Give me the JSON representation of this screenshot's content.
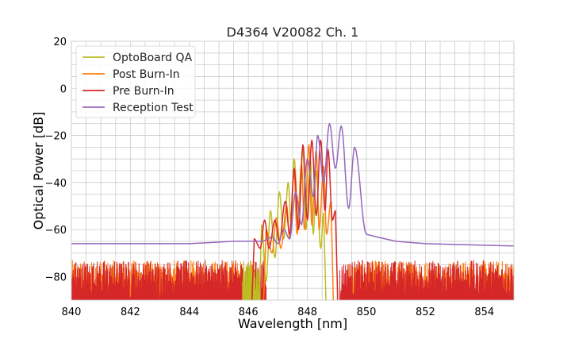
{
  "chart_data": {
    "type": "line",
    "title": "D4364 V20082 Ch. 1",
    "xlabel": "Wavelength [nm]",
    "ylabel": "Optical Power [dB]",
    "xlim": [
      840,
      855
    ],
    "ylim": [
      -90,
      20
    ],
    "xticks": [
      840,
      842,
      844,
      846,
      848,
      850,
      852,
      854
    ],
    "yticks": [
      20,
      0,
      -20,
      -40,
      -60,
      -80
    ],
    "xtick_labels": [
      "840",
      "842",
      "844",
      "846",
      "848",
      "850",
      "852",
      "854"
    ],
    "ytick_labels": [
      "20",
      "0",
      "−20",
      "−40",
      "−60",
      "−80"
    ],
    "grid": true,
    "legend_position": "top-left",
    "noise_floor": {
      "min": -90,
      "max": -73
    },
    "series": [
      {
        "name": "OptoBoard QA",
        "color": "#bcbd22",
        "noise_ranges": [
          [
            845.8,
            846.4
          ]
        ],
        "peaks": [
          {
            "x": 846.45,
            "y": -58
          },
          {
            "x": 846.75,
            "y": -52
          },
          {
            "x": 847.05,
            "y": -44
          },
          {
            "x": 847.35,
            "y": -40
          },
          {
            "x": 847.55,
            "y": -30
          },
          {
            "x": 847.85,
            "y": -26
          },
          {
            "x": 848.1,
            "y": -30
          },
          {
            "x": 848.3,
            "y": -35
          },
          {
            "x": 848.55,
            "y": -53
          }
        ],
        "valleys": [
          {
            "x": 846.6,
            "y": -82
          },
          {
            "x": 846.9,
            "y": -72
          },
          {
            "x": 847.2,
            "y": -64
          },
          {
            "x": 847.45,
            "y": -58
          },
          {
            "x": 847.7,
            "y": -58
          },
          {
            "x": 847.95,
            "y": -60
          },
          {
            "x": 848.2,
            "y": -62
          },
          {
            "x": 848.45,
            "y": -68
          }
        ]
      },
      {
        "name": "Post Burn-In",
        "color": "#ff7f0e",
        "noise_ranges": [
          [
            840,
            846.2
          ],
          [
            849.4,
            855
          ]
        ],
        "peaks": [
          {
            "x": 846.6,
            "y": -60
          },
          {
            "x": 846.95,
            "y": -55
          },
          {
            "x": 847.3,
            "y": -50
          },
          {
            "x": 847.55,
            "y": -36
          },
          {
            "x": 847.8,
            "y": -32
          },
          {
            "x": 848.05,
            "y": -24
          },
          {
            "x": 848.3,
            "y": -26
          },
          {
            "x": 848.55,
            "y": -33
          },
          {
            "x": 848.8,
            "y": -48
          }
        ],
        "valleys": [
          {
            "x": 846.8,
            "y": -70
          },
          {
            "x": 847.1,
            "y": -68
          },
          {
            "x": 847.4,
            "y": -64
          },
          {
            "x": 847.65,
            "y": -62
          },
          {
            "x": 847.9,
            "y": -60
          },
          {
            "x": 848.15,
            "y": -58
          },
          {
            "x": 848.4,
            "y": -60
          },
          {
            "x": 848.65,
            "y": -62
          }
        ]
      },
      {
        "name": "Pre Burn-In",
        "color": "#d62728",
        "noise_ranges": [
          [
            840,
            846.6
          ],
          [
            849.1,
            855
          ]
        ],
        "peaks": [
          {
            "x": 846.2,
            "y": -64
          },
          {
            "x": 846.55,
            "y": -56
          },
          {
            "x": 846.9,
            "y": -56
          },
          {
            "x": 847.25,
            "y": -48
          },
          {
            "x": 847.55,
            "y": -34
          },
          {
            "x": 847.85,
            "y": -24
          },
          {
            "x": 848.15,
            "y": -22
          },
          {
            "x": 848.45,
            "y": -22
          },
          {
            "x": 848.7,
            "y": -26
          },
          {
            "x": 848.95,
            "y": -52
          }
        ],
        "valleys": [
          {
            "x": 846.4,
            "y": -68
          },
          {
            "x": 846.7,
            "y": -68
          },
          {
            "x": 847.05,
            "y": -65
          },
          {
            "x": 847.4,
            "y": -62
          },
          {
            "x": 847.7,
            "y": -60
          },
          {
            "x": 848.0,
            "y": -56
          },
          {
            "x": 848.3,
            "y": -54
          },
          {
            "x": 848.6,
            "y": -52
          },
          {
            "x": 848.85,
            "y": -56
          }
        ]
      },
      {
        "name": "Reception Test",
        "color": "#9467bd",
        "baseline": [
          {
            "x": 840,
            "y": -66
          },
          {
            "x": 844,
            "y": -66
          },
          {
            "x": 845.5,
            "y": -65
          },
          {
            "x": 846.5,
            "y": -65
          },
          {
            "x": 850.3,
            "y": -63
          },
          {
            "x": 851,
            "y": -65
          },
          {
            "x": 852,
            "y": -66
          },
          {
            "x": 855,
            "y": -67
          }
        ],
        "peaks": [
          {
            "x": 846.8,
            "y": -63
          },
          {
            "x": 847.2,
            "y": -60
          },
          {
            "x": 847.6,
            "y": -44
          },
          {
            "x": 848.0,
            "y": -30
          },
          {
            "x": 848.35,
            "y": -20
          },
          {
            "x": 848.75,
            "y": -15
          },
          {
            "x": 849.15,
            "y": -16
          },
          {
            "x": 849.6,
            "y": -25
          }
        ],
        "valleys": [
          {
            "x": 847.0,
            "y": -66
          },
          {
            "x": 847.4,
            "y": -64
          },
          {
            "x": 847.8,
            "y": -58
          },
          {
            "x": 848.2,
            "y": -46
          },
          {
            "x": 848.55,
            "y": -40
          },
          {
            "x": 848.95,
            "y": -34
          },
          {
            "x": 849.4,
            "y": -51
          },
          {
            "x": 850.0,
            "y": -62
          }
        ]
      }
    ]
  }
}
